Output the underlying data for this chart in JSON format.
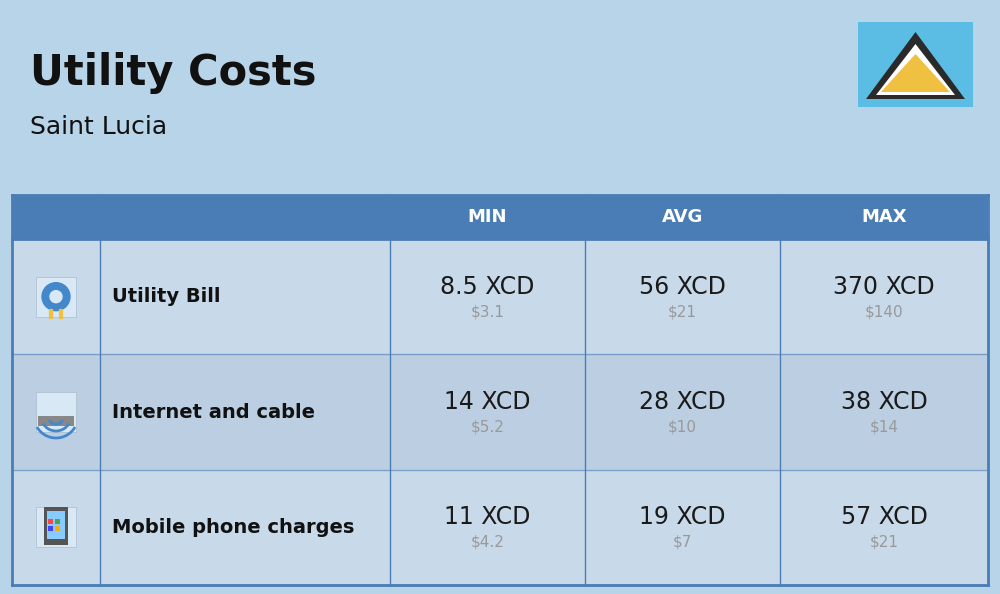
{
  "title": "Utility Costs",
  "subtitle": "Saint Lucia",
  "background_color": "#b8d4e8",
  "header_color": "#4a7db5",
  "header_text_color": "#ffffff",
  "row_color_1": "#c8d9ea",
  "row_color_2": "#bccfe2",
  "separator_color": "#4a7db5",
  "title_color": "#111111",
  "subtitle_color": "#111111",
  "label_color": "#111111",
  "value_color": "#1a1a1a",
  "sub_value_color": "#999999",
  "flag_blue": "#5bbde4",
  "flag_black": "#2a2a2a",
  "flag_yellow": "#f0c040",
  "flag_white": "#ffffff",
  "columns": [
    "MIN",
    "AVG",
    "MAX"
  ],
  "rows": [
    {
      "label": "Utility Bill",
      "min_xcd": "8.5 XCD",
      "min_usd": "$3.1",
      "avg_xcd": "56 XCD",
      "avg_usd": "$21",
      "max_xcd": "370 XCD",
      "max_usd": "$140"
    },
    {
      "label": "Internet and cable",
      "min_xcd": "14 XCD",
      "min_usd": "$5.2",
      "avg_xcd": "28 XCD",
      "avg_usd": "$10",
      "max_xcd": "38 XCD",
      "max_usd": "$14"
    },
    {
      "label": "Mobile phone charges",
      "min_xcd": "11 XCD",
      "min_usd": "$4.2",
      "avg_xcd": "19 XCD",
      "avg_usd": "$7",
      "max_xcd": "57 XCD",
      "max_usd": "$21"
    }
  ],
  "title_fontsize": 30,
  "subtitle_fontsize": 18,
  "header_fontsize": 13,
  "cell_fontsize_main": 17,
  "cell_fontsize_sub": 11,
  "label_fontsize": 14
}
